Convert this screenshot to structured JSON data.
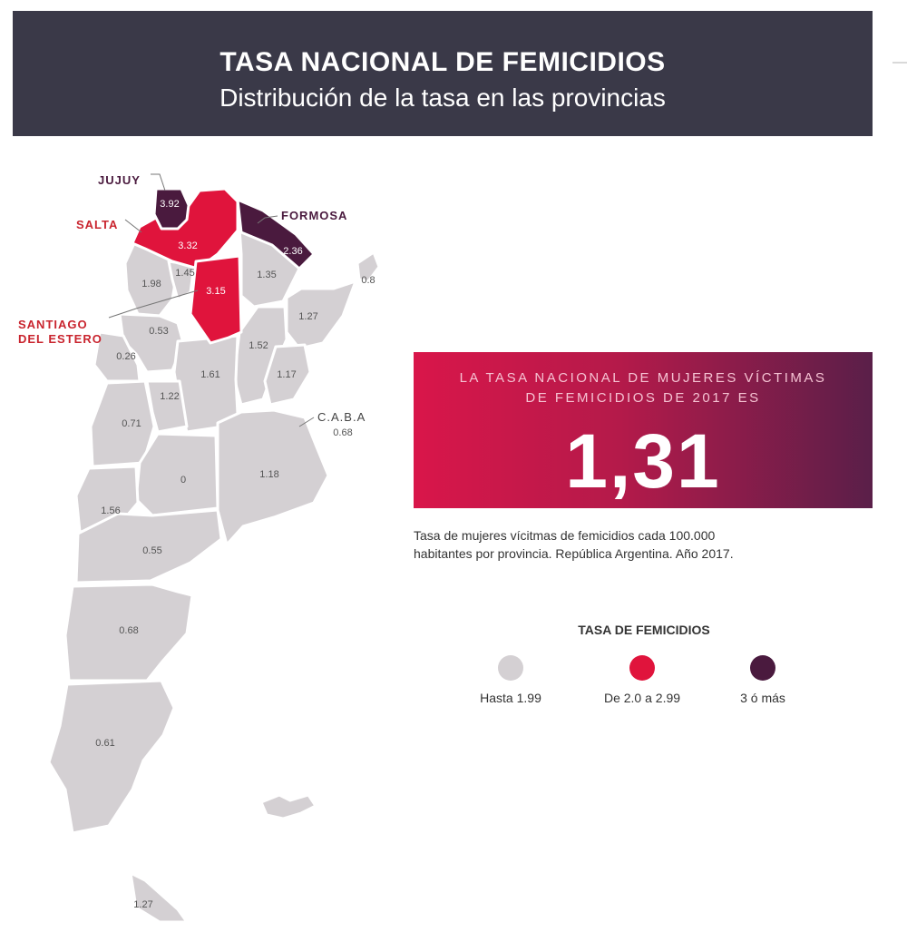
{
  "header": {
    "title": "TASA NACIONAL DE FEMICIDIOS",
    "subtitle": "Distribución de la tasa en las provincias"
  },
  "map": {
    "province_labels": {
      "jujuy": "JUJUY",
      "salta": "SALTA",
      "formosa": "FORMOSA",
      "santiago_line1": "SANTIAGO",
      "santiago_line2": "DEL ESTERO",
      "caba": "C.A.B.A"
    },
    "values": {
      "jujuy": "3.92",
      "salta": "3.32",
      "formosa": "2.36",
      "santiago": "3.15",
      "catamarca": "1.98",
      "tucuman": "1.45",
      "chaco": "1.35",
      "misiones": "0.8",
      "corrientes": "1.27",
      "la_rioja": "0.53",
      "santa_fe": "1.52",
      "san_juan": "0.26",
      "cordoba": "1.61",
      "entre_rios": "1.17",
      "san_luis": "1.22",
      "mendoza": "0.71",
      "caba": "0.68",
      "la_pampa": "0",
      "buenos_aires": "1.18",
      "neuquen": "1.56",
      "rio_negro": "0.55",
      "chubut": "0.68",
      "santa_cruz": "0.61",
      "tierra_del_fuego": "1.27"
    }
  },
  "rate_box": {
    "line1": "LA TASA NACIONAL DE MUJERES VÍCTIMAS",
    "line2": "DE FEMICIDIOS DE 2017 ES",
    "value": "1,31"
  },
  "note": {
    "line1": "Tasa de mujeres vícitmas de femicidios cada 100.000",
    "line2": "habitantes por provincia. República Argentina. Año 2017."
  },
  "legend": {
    "title": "TASA DE FEMICIDIOS",
    "items": [
      {
        "label": "Hasta 1.99",
        "color": "#d4d0d3"
      },
      {
        "label": "De 2.0 a 2.99",
        "color": "#e0143c"
      },
      {
        "label": "3 ó más",
        "color": "#4a1a3e"
      }
    ]
  }
}
